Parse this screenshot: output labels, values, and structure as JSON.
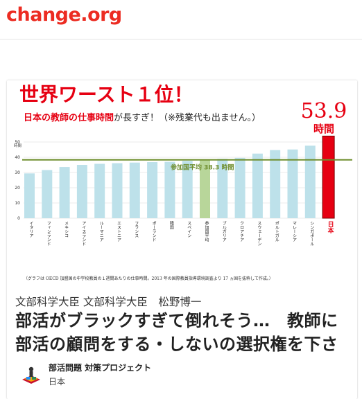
{
  "header": {
    "logo_text": "change.org"
  },
  "petition": {
    "decision_makers": "文部科学大臣 文部科学大臣　松野博一",
    "title": "部活がブラックすぎて倒れそう…　教師に部活の顧問をする・しないの選択権を下さい！",
    "starter": {
      "name": "部活問題 対策プロジェクト",
      "location": "日本"
    }
  },
  "image": {
    "headline": "世界ワースト１位！",
    "subheadline_red": "日本の教師の仕事時間",
    "subheadline_rest": "が長すぎ！（※残業代も出ません。）",
    "highlight_value": "53.9",
    "highlight_unit": "時間",
    "avg_label": "参加国平均 38.3 時間",
    "caption": "（グラフは OECD 加盟国の中学校教員の１週間あたりの仕事時間。2013 年の国際教員指導環境調査より 17 ヵ国を抜粋して作成。）",
    "colors": {
      "bar": "#bde1ea",
      "avg_bar": "#b8d69a",
      "japan_bar": "#e60012",
      "avg_line": "#6f8e2e",
      "headline": "#e60012"
    }
  },
  "chart_data": {
    "type": "bar",
    "ylabel": "時間",
    "ylim": [
      0,
      55
    ],
    "yticks": [
      "0",
      "10",
      "20",
      "30",
      "40",
      "50"
    ],
    "average": 38.3,
    "categories": [
      "イタリア",
      "フィンランド",
      "メキシコ",
      "アイスランド",
      "ルーマニア",
      "エストニア",
      "フランス",
      "ポーランド",
      "韓国",
      "スペイン",
      "参加国平均",
      "ブルガリア",
      "クロアチア",
      "スウェーデン",
      "ポルトガル",
      "マレーシア",
      "シンガポール",
      "日本"
    ],
    "values": [
      29.4,
      31.6,
      33.6,
      35.0,
      35.7,
      36.1,
      36.5,
      36.8,
      37.0,
      37.6,
      38.3,
      39.0,
      39.6,
      42.4,
      44.7,
      45.1,
      47.6,
      53.9
    ]
  }
}
